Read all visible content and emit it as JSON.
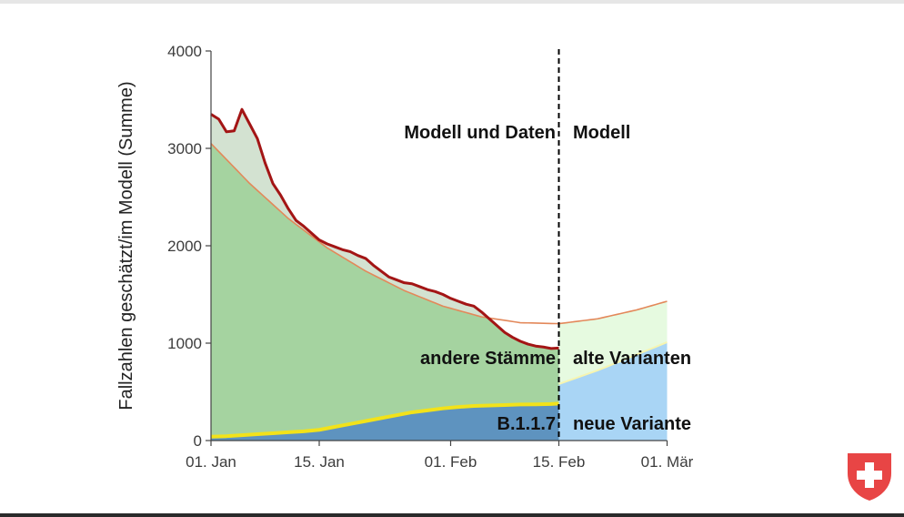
{
  "chart_data": {
    "type": "area",
    "ylabel": "Fallzahlen geschätzt/im Modell (Summe)",
    "xlabel": "",
    "ylim": [
      0,
      4000
    ],
    "yticks": [
      0,
      1000,
      2000,
      3000,
      4000
    ],
    "xlim": [
      0,
      62
    ],
    "xticks": [
      {
        "day": 0,
        "label": "01. Jan"
      },
      {
        "day": 14,
        "label": "15. Jan"
      },
      {
        "day": 31,
        "label": "01. Feb"
      },
      {
        "day": 45,
        "label": "15. Feb"
      },
      {
        "day": 59,
        "label": "01. Mär"
      }
    ],
    "split_day": 45,
    "annotations": {
      "left_region": "Modell und Daten",
      "right_region": "Modell",
      "other_strains": "andere Stämme",
      "old_variants": "alte Varianten",
      "b117": "B.1.1.7",
      "new_variant": "neue Variante"
    },
    "colors": {
      "data_line": "#a31515",
      "model_line": "#e3885a",
      "b117_line": "#f2e21a",
      "data_fill": "#d3e2d1",
      "other_fill": "#a5d3a0",
      "b117_fill": "#5e93bf",
      "future_old_fill": "#e6fae0",
      "future_new_fill": "#a9d5f5",
      "swiss_red": "#e84545"
    },
    "series": [
      {
        "name": "Daten",
        "x": [
          0,
          1,
          2,
          3,
          4,
          5,
          6,
          7,
          8,
          9,
          10,
          11,
          12,
          13,
          14,
          15,
          16,
          17,
          18,
          19,
          20,
          21,
          22,
          23,
          24,
          25,
          26,
          27,
          28,
          29,
          30,
          31,
          32,
          33,
          34,
          35,
          36,
          37,
          38,
          39,
          40,
          41,
          42,
          43,
          44,
          45
        ],
        "values": [
          3350,
          3300,
          3170,
          3180,
          3400,
          3250,
          3100,
          2850,
          2640,
          2520,
          2380,
          2260,
          2200,
          2130,
          2060,
          2020,
          1990,
          1960,
          1940,
          1900,
          1870,
          1800,
          1740,
          1680,
          1650,
          1620,
          1610,
          1580,
          1550,
          1530,
          1500,
          1460,
          1430,
          1400,
          1380,
          1320,
          1250,
          1180,
          1110,
          1060,
          1020,
          990,
          970,
          960,
          945,
          950
        ]
      },
      {
        "name": "Modell total",
        "x": [
          0,
          5,
          10,
          15,
          20,
          25,
          30,
          35,
          40,
          45,
          50,
          55,
          59
        ],
        "values": [
          3050,
          2640,
          2280,
          1980,
          1740,
          1540,
          1380,
          1270,
          1210,
          1200,
          1250,
          1340,
          1430
        ]
      },
      {
        "name": "B.1.1.7",
        "x": [
          0,
          2,
          4,
          6,
          8,
          10,
          12,
          14,
          16,
          18,
          20,
          22,
          24,
          26,
          28,
          30,
          32,
          34,
          36,
          38,
          40,
          42,
          44,
          45
        ],
        "values": [
          40,
          45,
          55,
          65,
          75,
          85,
          95,
          110,
          140,
          170,
          200,
          230,
          260,
          290,
          310,
          330,
          345,
          355,
          360,
          365,
          370,
          372,
          375,
          380
        ]
      },
      {
        "name": "B.1.1.7 Modell",
        "x": [
          45,
          50,
          55,
          59
        ],
        "values": [
          580,
          720,
          880,
          1010
        ]
      }
    ]
  }
}
